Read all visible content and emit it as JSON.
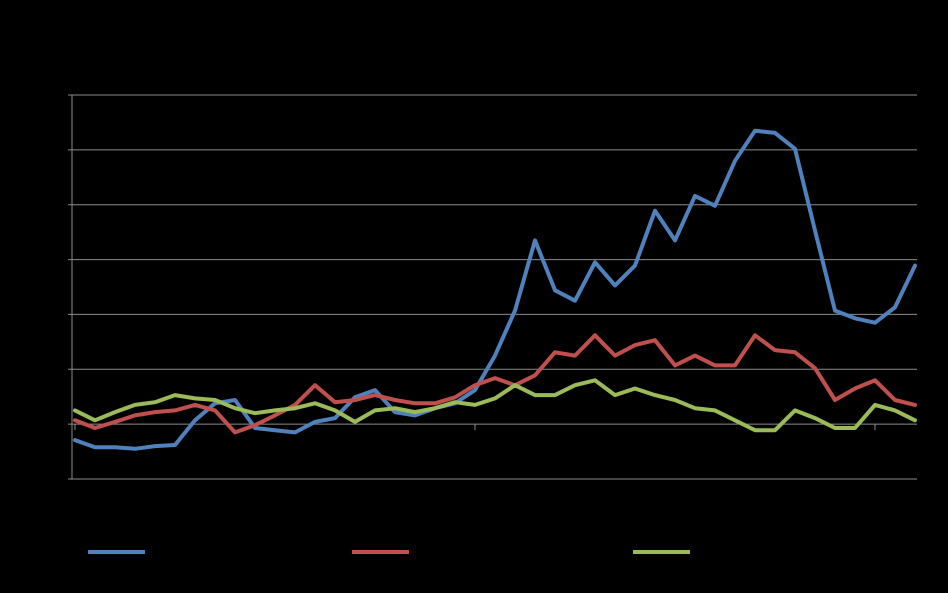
{
  "chart_data": {
    "type": "line",
    "x": [
      0,
      1,
      2,
      3,
      4,
      5,
      6,
      7,
      8,
      9,
      10,
      11,
      12,
      13,
      14,
      15,
      16,
      17,
      18,
      19,
      20,
      21,
      22,
      23,
      24,
      25,
      26,
      27,
      28,
      29,
      30,
      31,
      32,
      33,
      34,
      35,
      36,
      37,
      38,
      39,
      40,
      41,
      42
    ],
    "xlim": [
      0,
      42.1
    ],
    "xticks": [
      0,
      20,
      40
    ],
    "ylim": [
      -1,
      6
    ],
    "yticks": [
      -1,
      0,
      1,
      2,
      3,
      4,
      5,
      6
    ],
    "grid": true,
    "legend": "bottom",
    "series": [
      {
        "color": "#4f81bd",
        "values": [
          -0.29,
          -0.42,
          -0.42,
          -0.45,
          -0.4,
          -0.38,
          0.07,
          0.38,
          0.44,
          -0.07,
          -0.11,
          -0.15,
          0.04,
          0.11,
          0.49,
          0.62,
          0.22,
          0.16,
          0.29,
          0.38,
          0.62,
          1.25,
          2.07,
          3.35,
          2.44,
          2.25,
          2.95,
          2.53,
          2.89,
          3.89,
          3.35,
          4.16,
          3.98,
          4.8,
          5.35,
          5.31,
          5.02,
          3.53,
          2.07,
          1.93,
          1.85,
          2.13,
          2.89
        ]
      },
      {
        "color": "#c0504d",
        "values": [
          0.07,
          -0.07,
          0.04,
          0.16,
          0.22,
          0.25,
          0.35,
          0.25,
          -0.15,
          -0.02,
          0.16,
          0.35,
          0.71,
          0.4,
          0.44,
          0.53,
          0.44,
          0.38,
          0.38,
          0.49,
          0.71,
          0.84,
          0.71,
          0.89,
          1.31,
          1.25,
          1.62,
          1.25,
          1.44,
          1.53,
          1.07,
          1.25,
          1.07,
          1.07,
          1.62,
          1.35,
          1.31,
          1.02,
          0.44,
          0.65,
          0.8,
          0.44,
          0.35
        ]
      },
      {
        "color": "#9bbb59",
        "values": [
          0.25,
          0.07,
          0.22,
          0.35,
          0.4,
          0.53,
          0.47,
          0.44,
          0.29,
          0.2,
          0.25,
          0.29,
          0.38,
          0.25,
          0.04,
          0.25,
          0.29,
          0.22,
          0.29,
          0.4,
          0.35,
          0.47,
          0.71,
          0.53,
          0.53,
          0.71,
          0.8,
          0.53,
          0.65,
          0.53,
          0.44,
          0.29,
          0.25,
          0.07,
          -0.11,
          -0.11,
          0.25,
          0.11,
          -0.07,
          -0.07,
          0.35,
          0.25,
          0.07
        ]
      }
    ]
  }
}
